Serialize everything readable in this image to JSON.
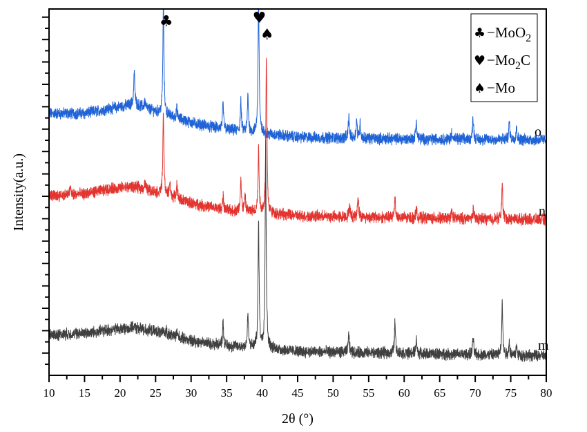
{
  "chart_data": {
    "type": "line",
    "xlabel": "2θ (°)",
    "ylabel": "Intensity(a.u.)",
    "xlim": [
      10,
      80
    ],
    "ylim": [
      0,
      100
    ],
    "xticks": [
      10,
      15,
      20,
      25,
      30,
      35,
      40,
      45,
      50,
      55,
      60,
      65,
      70,
      75,
      80
    ],
    "y_tick_labels_shown": false,
    "grid": false,
    "legend": {
      "placement": "top-right",
      "entries": [
        {
          "symbol": "♣",
          "label": "−MoO",
          "sub": "2",
          "after": ""
        },
        {
          "symbol": "♥",
          "label": "−Mo",
          "sub": "2",
          "after": "C"
        },
        {
          "symbol": "♠",
          "label": "−Mo",
          "sub": "",
          "after": ""
        }
      ]
    },
    "peak_markers": [
      {
        "symbol": "♣",
        "x": 26.5
      },
      {
        "symbol": "♥",
        "x": 39.6
      },
      {
        "symbol": "♠",
        "x": 40.7
      }
    ],
    "series": [
      {
        "name": "o",
        "color": "#1f63d6",
        "baseline": [
          [
            10,
            71.5
          ],
          [
            15,
            71.5
          ],
          [
            19,
            73
          ],
          [
            22,
            74
          ],
          [
            25,
            72
          ],
          [
            30,
            69
          ],
          [
            35,
            67
          ],
          [
            40,
            66
          ],
          [
            45,
            65
          ],
          [
            60,
            64.5
          ],
          [
            80,
            64.3
          ]
        ],
        "peaks": [
          [
            22.0,
            9
          ],
          [
            23.5,
            2
          ],
          [
            26.1,
            30
          ],
          [
            28.0,
            2.5
          ],
          [
            34.5,
            7
          ],
          [
            37.0,
            8
          ],
          [
            38.0,
            10
          ],
          [
            39.5,
            38
          ],
          [
            52.2,
            6
          ],
          [
            53.3,
            5
          ],
          [
            53.8,
            4
          ],
          [
            61.7,
            5
          ],
          [
            66.7,
            2
          ],
          [
            69.7,
            6
          ],
          [
            74.8,
            5
          ],
          [
            75.8,
            3.5
          ]
        ]
      },
      {
        "name": "n",
        "color": "#e3342f",
        "baseline": [
          [
            10,
            49
          ],
          [
            15,
            49.5
          ],
          [
            19,
            51
          ],
          [
            22,
            51.5
          ],
          [
            25,
            50
          ],
          [
            30,
            47
          ],
          [
            35,
            45
          ],
          [
            40,
            44.5
          ],
          [
            45,
            43.5
          ],
          [
            60,
            43
          ],
          [
            80,
            42.5
          ]
        ],
        "peaks": [
          [
            13.0,
            2
          ],
          [
            23.5,
            2
          ],
          [
            26.1,
            22
          ],
          [
            27.0,
            4
          ],
          [
            28.0,
            4
          ],
          [
            34.5,
            3.5
          ],
          [
            37.0,
            9
          ],
          [
            37.6,
            4
          ],
          [
            39.5,
            17
          ],
          [
            40.6,
            42
          ],
          [
            52.3,
            3
          ],
          [
            53.5,
            6
          ],
          [
            58.7,
            6
          ],
          [
            61.7,
            2.5
          ],
          [
            66.7,
            2
          ],
          [
            69.7,
            2.5
          ],
          [
            73.8,
            9.5
          ]
        ]
      },
      {
        "name": "m",
        "color": "#404040",
        "baseline": [
          [
            10,
            11
          ],
          [
            15,
            11.5
          ],
          [
            19,
            12.5
          ],
          [
            22,
            13
          ],
          [
            25,
            12
          ],
          [
            30,
            9.5
          ],
          [
            35,
            8
          ],
          [
            40,
            7.5
          ],
          [
            45,
            6.5
          ],
          [
            60,
            6
          ],
          [
            80,
            5.3
          ]
        ],
        "peaks": [
          [
            26.5,
            1.5
          ],
          [
            28.0,
            1.5
          ],
          [
            34.5,
            6.5
          ],
          [
            38.0,
            9
          ],
          [
            39.5,
            34
          ],
          [
            40.5,
            56
          ],
          [
            52.2,
            5
          ],
          [
            58.7,
            8.5
          ],
          [
            61.7,
            4
          ],
          [
            69.7,
            4.5
          ],
          [
            73.8,
            14.5
          ],
          [
            74.8,
            3.5
          ],
          [
            75.8,
            2.5
          ]
        ]
      }
    ]
  }
}
